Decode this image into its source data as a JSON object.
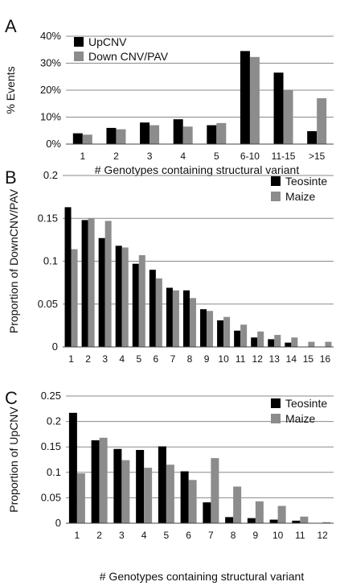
{
  "chart_data": [
    {
      "panel": "A",
      "type": "bar",
      "ylabel": "% Events",
      "xlabel": "# Genotypes containing structural variant",
      "categories": [
        "1",
        "2",
        "3",
        "4",
        "5",
        "6-10",
        "11-15",
        ">15"
      ],
      "ylim": [
        0,
        40
      ],
      "yticks": [
        0,
        10,
        20,
        30,
        40
      ],
      "ytick_labels": [
        "0%",
        "10%",
        "20%",
        "30%",
        "40%"
      ],
      "grid": true,
      "legend": "top-left",
      "series": [
        {
          "name": "UpCNV",
          "color": "#000000",
          "values": [
            4.0,
            6.0,
            8.0,
            9.2,
            7.0,
            34.5,
            26.5,
            4.8
          ]
        },
        {
          "name": "Down CNV/PAV",
          "color": "#8c8c8c",
          "values": [
            3.5,
            5.5,
            7.0,
            6.5,
            7.8,
            32.3,
            20.0,
            17.0
          ]
        }
      ]
    },
    {
      "panel": "B",
      "type": "bar",
      "ylabel": "Proportion  of DownCNV/PAV",
      "xlabel": "",
      "categories": [
        "1",
        "2",
        "3",
        "4",
        "5",
        "6",
        "7",
        "8",
        "9",
        "10",
        "11",
        "12",
        "13",
        "14",
        "15",
        "16"
      ],
      "ylim": [
        0,
        0.2
      ],
      "yticks": [
        0,
        0.05,
        0.1,
        0.15,
        0.2
      ],
      "ytick_labels": [
        "0",
        "0.05",
        "0.1",
        "0.15",
        "0.2"
      ],
      "grid": true,
      "legend": "top-right",
      "series": [
        {
          "name": "Teosinte",
          "color": "#000000",
          "values": [
            0.163,
            0.148,
            0.127,
            0.118,
            0.097,
            0.09,
            0.069,
            0.066,
            0.044,
            0.031,
            0.019,
            0.011,
            0.009,
            0.005,
            0.0,
            0.0
          ]
        },
        {
          "name": "Maize",
          "color": "#8c8c8c",
          "values": [
            0.114,
            0.15,
            0.147,
            0.116,
            0.107,
            0.08,
            0.066,
            0.057,
            0.042,
            0.035,
            0.026,
            0.018,
            0.014,
            0.011,
            0.006,
            0.006
          ]
        }
      ]
    },
    {
      "panel": "C",
      "type": "bar",
      "ylabel": "Proportion  of UpCNV",
      "xlabel": "# Genotypes containing structural variant",
      "categories": [
        "1",
        "2",
        "3",
        "4",
        "5",
        "6",
        "7",
        "8",
        "9",
        "10",
        "11",
        "12"
      ],
      "ylim": [
        0,
        0.25
      ],
      "yticks": [
        0,
        0.05,
        0.1,
        0.15,
        0.2,
        0.25
      ],
      "ytick_labels": [
        "0",
        "0.05",
        "0.1",
        "0.15",
        "0.2",
        "0.25"
      ],
      "grid": true,
      "legend": "top-right",
      "series": [
        {
          "name": "Teosinte",
          "color": "#000000",
          "values": [
            0.217,
            0.163,
            0.146,
            0.144,
            0.151,
            0.102,
            0.041,
            0.012,
            0.01,
            0.007,
            0.005,
            0.0
          ]
        },
        {
          "name": "Maize",
          "color": "#8c8c8c",
          "values": [
            0.098,
            0.168,
            0.124,
            0.109,
            0.115,
            0.085,
            0.128,
            0.072,
            0.043,
            0.034,
            0.013,
            0.002
          ]
        }
      ]
    }
  ]
}
